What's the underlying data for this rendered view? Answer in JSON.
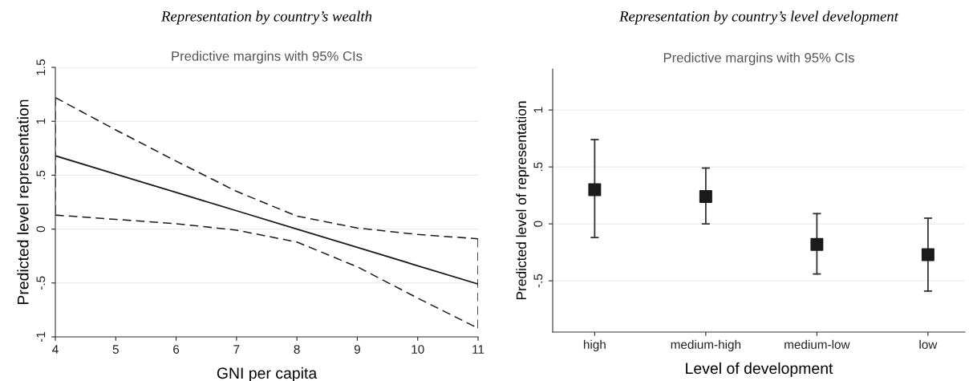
{
  "chart_data": [
    {
      "type": "line",
      "title": "Representation by country’s wealth",
      "subtitle": "Predictive margins with 95% CIs",
      "xlabel": "GNI per capita",
      "ylabel": "Predicted level representation",
      "x": [
        4,
        5,
        6,
        7,
        8,
        9,
        10,
        11
      ],
      "series": [
        {
          "color": "#1a1a1a",
          "line_style": "solid",
          "values": [
            0.68,
            0.51,
            0.34,
            0.17,
            0.0,
            -0.17,
            -0.34,
            -0.51
          ]
        },
        {
          "color": "#1a1a1a",
          "line_style": "dashed",
          "values": [
            1.22,
            0.92,
            0.63,
            0.35,
            0.12,
            0.01,
            -0.05,
            -0.09
          ]
        },
        {
          "color": "#1a1a1a",
          "line_style": "dashed",
          "values": [
            0.13,
            0.09,
            0.05,
            -0.01,
            -0.12,
            -0.35,
            -0.64,
            -0.92
          ]
        }
      ],
      "xlim": [
        4,
        11
      ],
      "xticks": [
        4,
        5,
        6,
        7,
        8,
        9,
        10,
        11
      ],
      "ylim": [
        -1,
        1.5
      ],
      "yticks": [
        {
          "value": -1,
          "label": "-1"
        },
        {
          "value": -0.5,
          "label": "-.5"
        },
        0,
        {
          "value": 0.5,
          "label": ".5"
        },
        1,
        1.5
      ],
      "grid": "y",
      "marker": "none"
    },
    {
      "type": "scatter",
      "title": "Representation by country’s level development",
      "subtitle": "Predictive margins with 95% CIs",
      "xlabel": "Level of development",
      "ylabel": "Predicted level of representation",
      "categories": [
        "high",
        "medium-high",
        "medium-low",
        "low"
      ],
      "series": [
        {
          "color": "#1a1a1a",
          "values": [
            0.3,
            0.24,
            -0.18,
            -0.27
          ],
          "errors": [
            [
              -0.12,
              0.74
            ],
            [
              0.0,
              0.49
            ],
            [
              -0.44,
              0.09
            ],
            [
              -0.59,
              0.05
            ]
          ]
        }
      ],
      "ylim": [
        -0.95,
        1.36
      ],
      "yticks": [
        {
          "value": -0.5,
          "label": "-.5"
        },
        0,
        {
          "value": 0.5,
          "label": ".5"
        },
        1
      ],
      "grid": "y",
      "marker": "square"
    }
  ]
}
